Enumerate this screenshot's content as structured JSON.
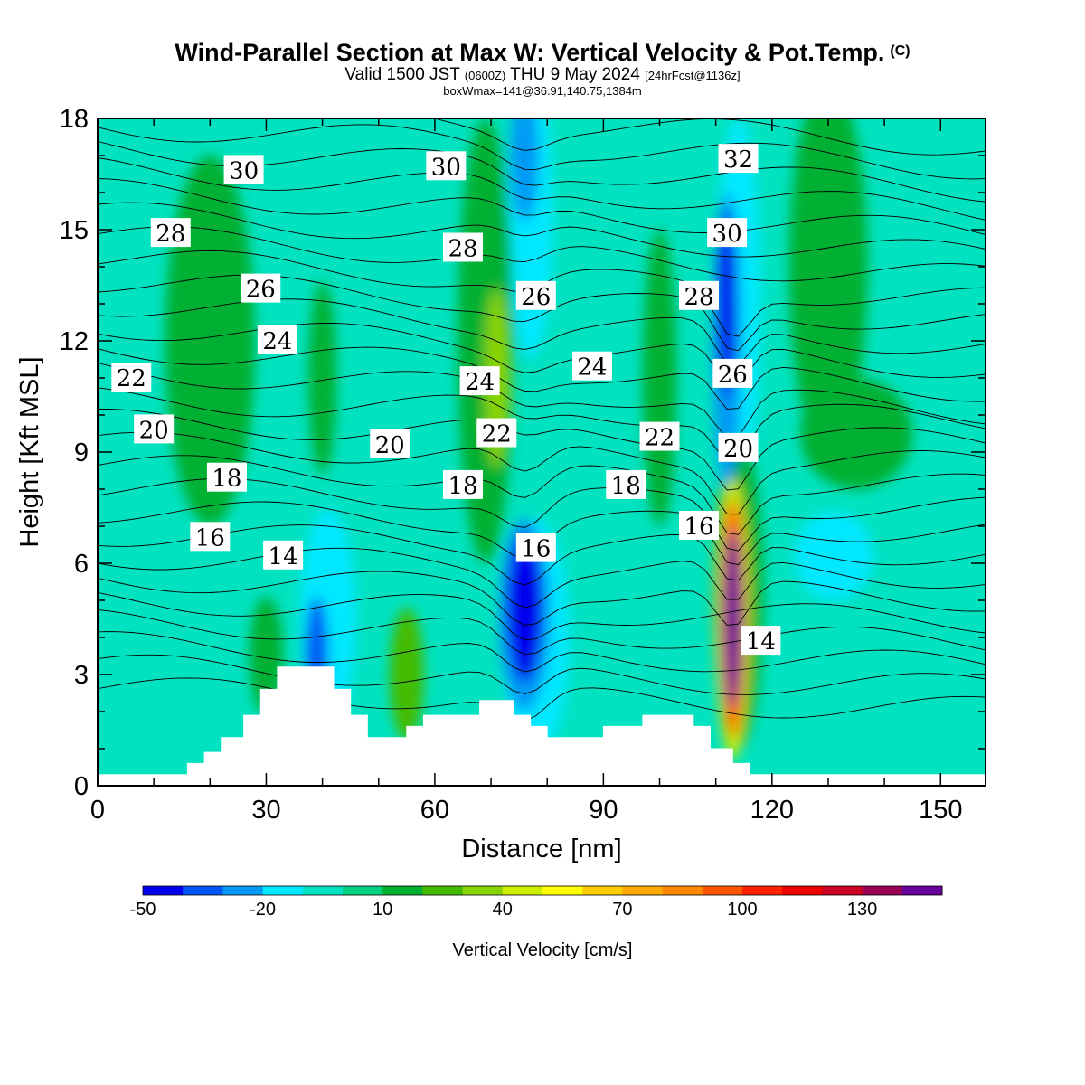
{
  "header": {
    "title": "Wind-Parallel Section at Max W: Vertical Velocity & Pot.Temp.",
    "copyright": "(C)",
    "valid_prefix": "Valid 1500 JST",
    "valid_utc": "(0600Z)",
    "valid_suffix": "THU 9 May 2024",
    "forecast": "[24hrFcst@1136z]",
    "box_info": "boxWmax=141@36.91,140.75,1384m"
  },
  "chart_data": {
    "type": "heatmap",
    "title": "Wind-Parallel Section at Max W: Vertical Velocity & Pot.Temp.",
    "xlabel": "Distance [nm]",
    "ylabel": "Height [Kft MSL]",
    "xlim": [
      0,
      158
    ],
    "ylim": [
      0,
      18
    ],
    "x_ticks": [
      0,
      30,
      60,
      90,
      120,
      150
    ],
    "y_ticks": [
      0,
      3,
      6,
      9,
      12,
      15,
      18
    ],
    "colorbar": {
      "label": "Vertical Velocity [cm/s]",
      "tick_labels": [
        -50,
        -20,
        10,
        40,
        70,
        100,
        130
      ],
      "levels": [
        -50,
        -40,
        -30,
        -20,
        -10,
        0,
        10,
        20,
        30,
        40,
        50,
        60,
        70,
        80,
        90,
        100,
        110,
        120,
        130,
        140,
        150
      ],
      "colors": [
        "#0000ee",
        "#0055f5",
        "#0099f5",
        "#00e8ff",
        "#00e2c0",
        "#00d080",
        "#00b030",
        "#44bb00",
        "#88d400",
        "#ccec00",
        "#ffff00",
        "#ffcc00",
        "#ffaa00",
        "#ff8800",
        "#ff5500",
        "#ff2200",
        "#ee0000",
        "#cc0022",
        "#990055",
        "#660099"
      ]
    },
    "background_w": 0,
    "w_features": [
      {
        "x": 113,
        "y": 4.5,
        "w": 141,
        "note": "max updraft"
      },
      {
        "x": 76,
        "y": 4.8,
        "w": -45
      },
      {
        "x": 39,
        "y": 3.5,
        "w": -35
      },
      {
        "x": 112,
        "y": 13.0,
        "w": -45
      },
      {
        "x": 76,
        "y": 17.0,
        "w": -30
      },
      {
        "x": 71,
        "y": 11.0,
        "w": 30
      },
      {
        "x": 40,
        "y": 11.0,
        "w": 15
      },
      {
        "x": 55,
        "y": 3.0,
        "w": 20
      },
      {
        "x": 30,
        "y": 3.5,
        "w": 15
      }
    ],
    "theta_contour_labels": [
      {
        "text": "30",
        "x": 26,
        "y": 16.6
      },
      {
        "text": "28",
        "x": 13,
        "y": 14.9
      },
      {
        "text": "26",
        "x": 29,
        "y": 13.4
      },
      {
        "text": "24",
        "x": 32,
        "y": 12.0
      },
      {
        "text": "22",
        "x": 6,
        "y": 11.0
      },
      {
        "text": "20",
        "x": 10,
        "y": 9.6
      },
      {
        "text": "18",
        "x": 23,
        "y": 8.3
      },
      {
        "text": "16",
        "x": 20,
        "y": 6.7
      },
      {
        "text": "14",
        "x": 33,
        "y": 6.2
      },
      {
        "text": "30",
        "x": 62,
        "y": 16.7
      },
      {
        "text": "28",
        "x": 65,
        "y": 14.5
      },
      {
        "text": "26",
        "x": 78,
        "y": 13.2
      },
      {
        "text": "24",
        "x": 68,
        "y": 10.9
      },
      {
        "text": "24",
        "x": 88,
        "y": 11.3
      },
      {
        "text": "22",
        "x": 71,
        "y": 9.5
      },
      {
        "text": "20",
        "x": 52,
        "y": 9.2
      },
      {
        "text": "18",
        "x": 65,
        "y": 8.1
      },
      {
        "text": "16",
        "x": 78,
        "y": 6.4
      },
      {
        "text": "22",
        "x": 100,
        "y": 9.4
      },
      {
        "text": "18",
        "x": 94,
        "y": 8.1
      },
      {
        "text": "16",
        "x": 107,
        "y": 7.0
      },
      {
        "text": "32",
        "x": 114,
        "y": 16.9
      },
      {
        "text": "30",
        "x": 112,
        "y": 14.9
      },
      {
        "text": "28",
        "x": 107,
        "y": 13.2
      },
      {
        "text": "26",
        "x": 113,
        "y": 11.1
      },
      {
        "text": "20",
        "x": 114,
        "y": 9.1
      },
      {
        "text": "14",
        "x": 118,
        "y": 3.9
      }
    ],
    "terrain": [
      [
        0,
        0.3
      ],
      [
        16,
        0.3
      ],
      [
        16,
        0.6
      ],
      [
        19,
        0.6
      ],
      [
        19,
        0.9
      ],
      [
        22,
        0.9
      ],
      [
        22,
        1.3
      ],
      [
        26,
        1.3
      ],
      [
        26,
        1.9
      ],
      [
        29,
        1.9
      ],
      [
        29,
        2.6
      ],
      [
        32,
        2.6
      ],
      [
        32,
        3.2
      ],
      [
        42,
        3.2
      ],
      [
        42,
        2.6
      ],
      [
        45,
        2.6
      ],
      [
        45,
        1.9
      ],
      [
        48,
        1.9
      ],
      [
        48,
        1.3
      ],
      [
        55,
        1.3
      ],
      [
        55,
        1.6
      ],
      [
        58,
        1.6
      ],
      [
        58,
        1.9
      ],
      [
        68,
        1.9
      ],
      [
        68,
        2.3
      ],
      [
        74,
        2.3
      ],
      [
        74,
        1.9
      ],
      [
        77,
        1.9
      ],
      [
        77,
        1.6
      ],
      [
        80,
        1.6
      ],
      [
        80,
        1.3
      ],
      [
        90,
        1.3
      ],
      [
        90,
        1.6
      ],
      [
        97,
        1.6
      ],
      [
        97,
        1.9
      ],
      [
        106,
        1.9
      ],
      [
        106,
        1.6
      ],
      [
        109,
        1.6
      ],
      [
        109,
        1.0
      ],
      [
        113,
        1.0
      ],
      [
        113,
        0.6
      ],
      [
        116,
        0.6
      ],
      [
        116,
        0.3
      ],
      [
        158,
        0.3
      ]
    ]
  }
}
